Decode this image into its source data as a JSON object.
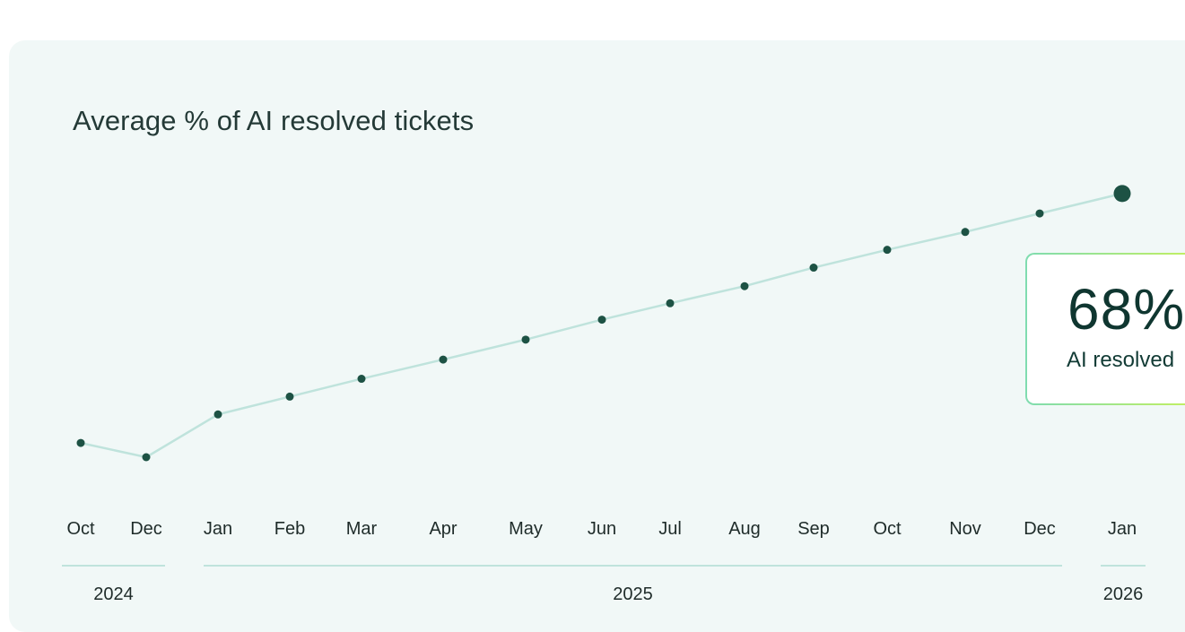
{
  "chart_data": {
    "type": "line",
    "title": "Average % of AI resolved tickets",
    "x": [
      "Oct",
      "Dec",
      "Jan",
      "Feb",
      "Mar",
      "Apr",
      "May",
      "Jun",
      "Jul",
      "Aug",
      "Sep",
      "Oct",
      "Nov",
      "Dec",
      "Jan"
    ],
    "series": [
      {
        "values": [
          40,
          38,
          44,
          46.5,
          49,
          51.7,
          54.5,
          57.3,
          59.6,
          62,
          64.6,
          67.1,
          69.6,
          72.2,
          75
        ]
      }
    ],
    "year_groups": [
      {
        "label": "2024",
        "months": [
          "Oct",
          "Dec"
        ]
      },
      {
        "label": "2025",
        "months": [
          "Jan",
          "Feb",
          "Mar",
          "Apr",
          "May",
          "Jun",
          "Jul",
          "Aug",
          "Sep",
          "Oct",
          "Nov",
          "Dec"
        ]
      },
      {
        "label": "2026",
        "months": [
          "Jan"
        ]
      }
    ],
    "line_color": "#bfe3dc",
    "point_color": "#1d5244",
    "grid": false
  },
  "callout": {
    "value": "68%",
    "label": "AI resolved"
  }
}
